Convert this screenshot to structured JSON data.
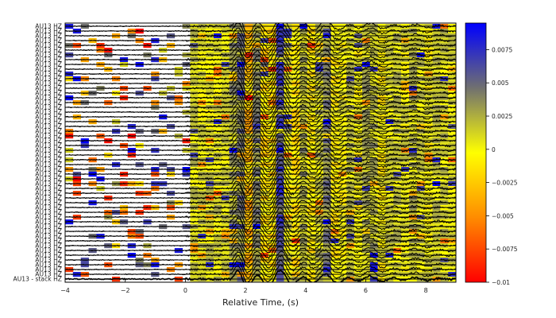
{
  "chart_data": {
    "type": "heatmap",
    "title": "",
    "xlabel": "Relative Time, (s)",
    "ylabel": "",
    "xlim": [
      -4,
      9
    ],
    "x_ticks": [
      -4,
      -2,
      0,
      2,
      4,
      6,
      8
    ],
    "trace_label": "AU13 HZ",
    "trace_count": 53,
    "stack_label": "AU13 - stack HZ",
    "colorbar": {
      "min": -0.01,
      "max": 0.0095,
      "ticks": [
        0.0075,
        0.005,
        0.0025,
        0,
        -0.0025,
        -0.005,
        -0.0075,
        -0.01
      ],
      "tick_labels": [
        "0.0075",
        "0.005",
        "0.0025",
        "0",
        "-0.0025",
        "-0.005",
        "-0.0075",
        "-0.01"
      ],
      "colormap": [
        "#ff0000",
        "#ff8c00",
        "#ffff00",
        "#707070",
        "#0000ff"
      ]
    },
    "waveform": {
      "noise_end_s": 0,
      "arrival_s": 1.5,
      "peak_s": 2.2,
      "dominant_period_s": 0.75,
      "duration_s": 7.5
    }
  }
}
